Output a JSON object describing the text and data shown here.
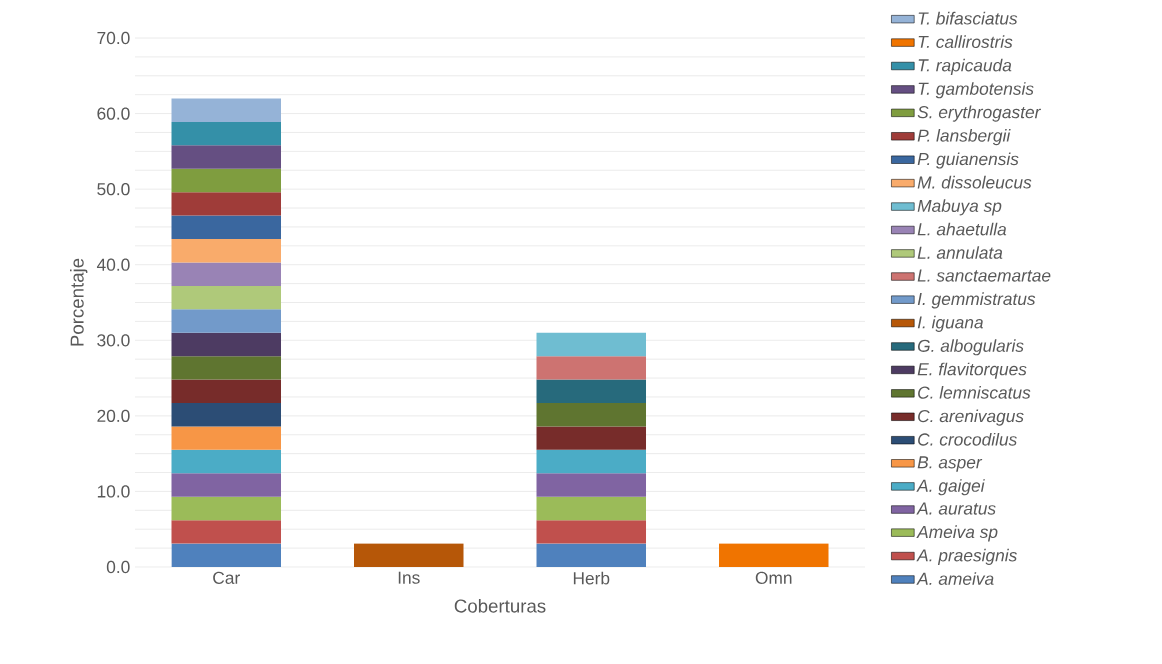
{
  "chart_data": {
    "type": "bar",
    "stacked": true,
    "xlabel": "Coberturas",
    "ylabel": "Porcentaje",
    "categories": [
      "Car",
      "Ins",
      "Herb",
      "Omn"
    ],
    "ylim": [
      0,
      70
    ],
    "yticks": [
      {
        "value": 0,
        "label": "0.0"
      },
      {
        "value": 2.5,
        "label": null
      },
      {
        "value": 5,
        "label": null
      },
      {
        "value": 7.5,
        "label": null
      },
      {
        "value": 10,
        "label": "10.0"
      },
      {
        "value": 12.5,
        "label": null
      },
      {
        "value": 15,
        "label": null
      },
      {
        "value": 17.5,
        "label": null
      },
      {
        "value": 20,
        "label": "20.0"
      },
      {
        "value": 22.5,
        "label": null
      },
      {
        "value": 25,
        "label": null
      },
      {
        "value": 27.5,
        "label": null
      },
      {
        "value": 30,
        "label": "30.0"
      },
      {
        "value": 32.5,
        "label": null
      },
      {
        "value": 35,
        "label": null
      },
      {
        "value": 37.5,
        "label": null
      },
      {
        "value": 40,
        "label": "40.0"
      },
      {
        "value": 42.5,
        "label": null
      },
      {
        "value": 45,
        "label": null
      },
      {
        "value": 47.5,
        "label": null
      },
      {
        "value": 50,
        "label": "50.0"
      },
      {
        "value": 52.5,
        "label": null
      },
      {
        "value": 55,
        "label": null
      },
      {
        "value": 57.5,
        "label": null
      },
      {
        "value": 60,
        "label": "60.0"
      },
      {
        "value": 62.5,
        "label": null
      },
      {
        "value": 65,
        "label": null
      },
      {
        "value": 67.5,
        "label": null
      },
      {
        "value": 70,
        "label": "70.0"
      }
    ],
    "grid": "y",
    "legend": "right",
    "series": [
      {
        "name": "A. ameiva",
        "color": "#4f81bd",
        "values": [
          3.1,
          null,
          3.1,
          null
        ]
      },
      {
        "name": "A. praesignis",
        "color": "#c0504d",
        "values": [
          3.1,
          null,
          3.1,
          null
        ]
      },
      {
        "name": "Ameiva sp",
        "color": "#9bbb59",
        "values": [
          3.1,
          null,
          3.1,
          null
        ]
      },
      {
        "name": "A. auratus",
        "color": "#8064a2",
        "values": [
          3.1,
          null,
          3.1,
          null
        ]
      },
      {
        "name": "A. gaigei",
        "color": "#4bacc6",
        "values": [
          3.1,
          null,
          3.1,
          null
        ]
      },
      {
        "name": "B. asper",
        "color": "#f79646",
        "values": [
          3.1,
          null,
          null,
          null
        ]
      },
      {
        "name": "C. crocodilus",
        "color": "#2c4d75",
        "values": [
          3.1,
          null,
          null,
          null
        ]
      },
      {
        "name": "C. arenivagus",
        "color": "#772c2a",
        "values": [
          3.1,
          null,
          3.1,
          null
        ]
      },
      {
        "name": "C. lemniscatus",
        "color": "#5f7530",
        "values": [
          3.1,
          null,
          3.1,
          null
        ]
      },
      {
        "name": "E. flavitorques",
        "color": "#4d3b62",
        "values": [
          3.1,
          null,
          null,
          null
        ]
      },
      {
        "name": "G. albogularis",
        "color": "#276a7c",
        "values": [
          null,
          null,
          3.1,
          null
        ]
      },
      {
        "name": "I. iguana",
        "color": "#b65708",
        "values": [
          null,
          3.1,
          null,
          null
        ]
      },
      {
        "name": "I. gemmistratus",
        "color": "#729aca",
        "values": [
          3.1,
          null,
          null,
          null
        ]
      },
      {
        "name": "L. sanctaemartae",
        "color": "#cd7371",
        "values": [
          null,
          null,
          3.1,
          null
        ]
      },
      {
        "name": "L. annulata",
        "color": "#afc97a",
        "values": [
          3.1,
          null,
          null,
          null
        ]
      },
      {
        "name": "L. ahaetulla",
        "color": "#9983b5",
        "values": [
          3.1,
          null,
          null,
          null
        ]
      },
      {
        "name": "Mabuya sp",
        "color": "#6fbdd1",
        "values": [
          null,
          null,
          3.1,
          null
        ]
      },
      {
        "name": "M. dissoleucus",
        "color": "#f9ab6b",
        "values": [
          3.1,
          null,
          null,
          null
        ]
      },
      {
        "name": "P. guianensis",
        "color": "#3a679f",
        "values": [
          3.1,
          null,
          null,
          null
        ]
      },
      {
        "name": "P. lansbergii",
        "color": "#9f3c39",
        "values": [
          3.1,
          null,
          null,
          null
        ]
      },
      {
        "name": "S. erythrogaster",
        "color": "#7f9d3f",
        "values": [
          3.1,
          null,
          null,
          null
        ]
      },
      {
        "name": "T. gambotensis",
        "color": "#654f82",
        "values": [
          3.1,
          null,
          null,
          null
        ]
      },
      {
        "name": "T. rapicauda",
        "color": "#3490a8",
        "values": [
          3.1,
          null,
          null,
          null
        ]
      },
      {
        "name": "T. callirostris",
        "color": "#f07400",
        "values": [
          null,
          null,
          null,
          3.1
        ]
      },
      {
        "name": "T. bifasciatus",
        "color": "#95b3d7",
        "values": [
          3.1,
          null,
          null,
          null
        ]
      }
    ]
  }
}
